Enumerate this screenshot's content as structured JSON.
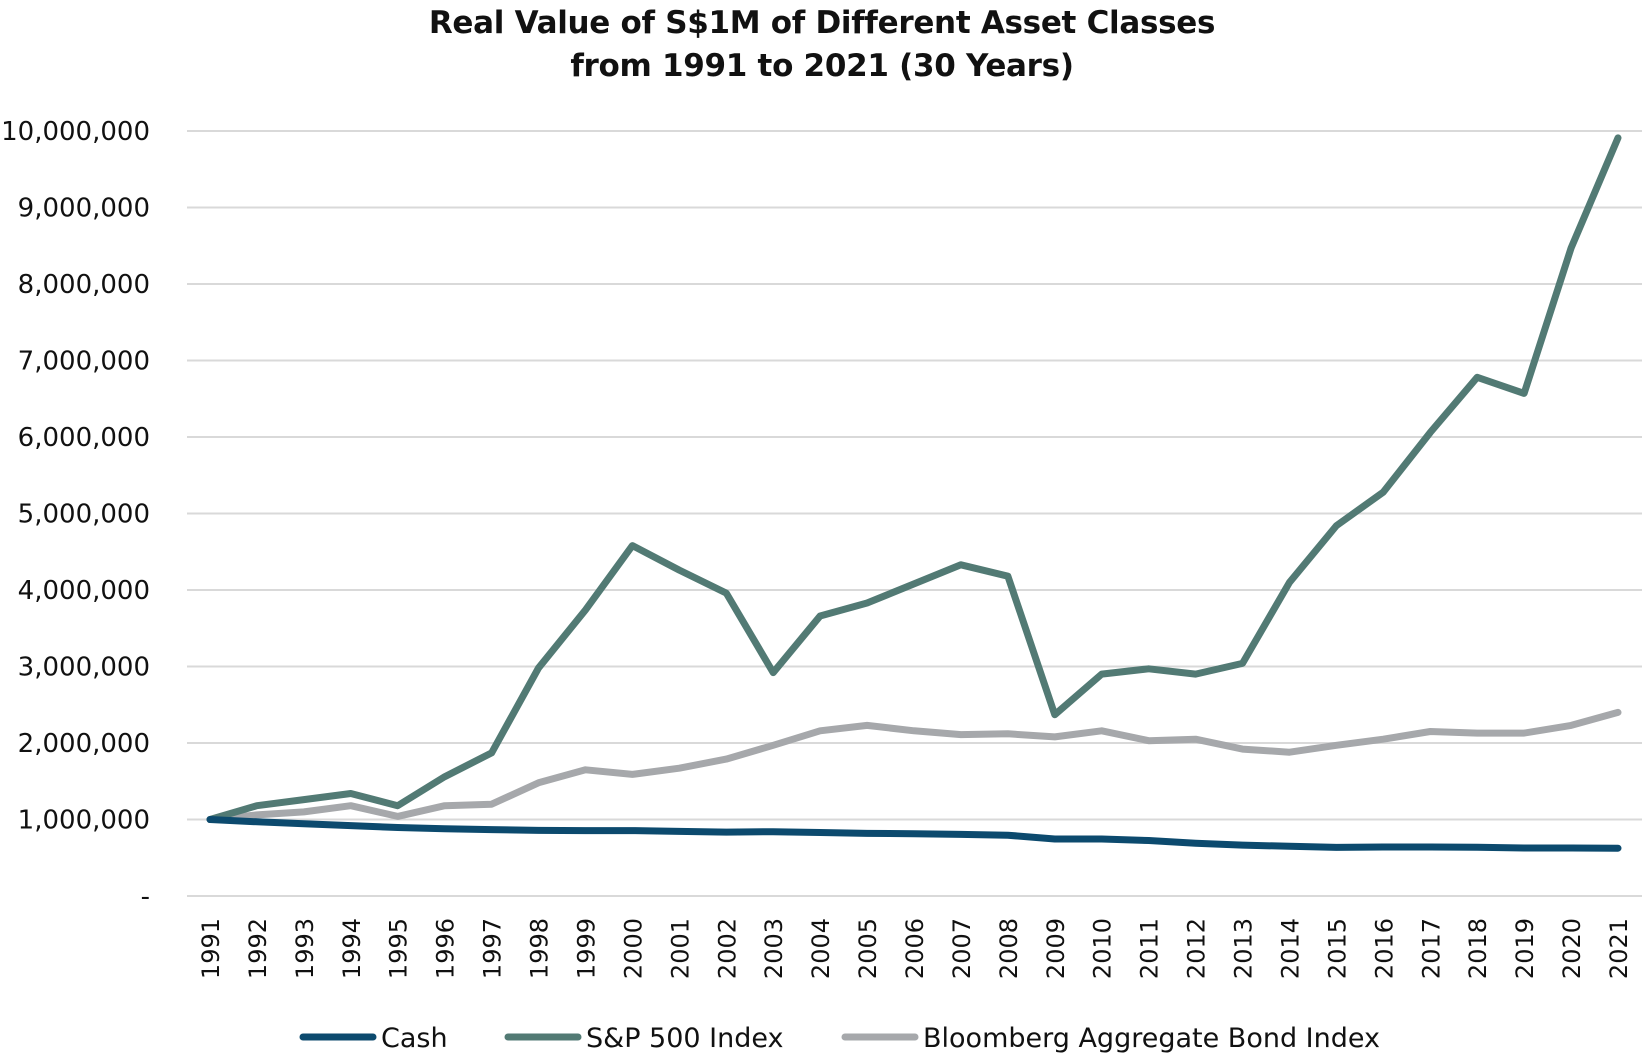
{
  "chart_data": {
    "type": "line",
    "title_line1": "Real Value of S$1M of Different Asset Classes",
    "title_line2": "from 1991 to 2021 (30 Years)",
    "xlabel": "",
    "ylabel": "",
    "ylim": [
      0,
      10000000
    ],
    "yticks": [
      {
        "value": 0,
        "label": "-"
      },
      {
        "value": 1000000,
        "label": "1,000,000"
      },
      {
        "value": 2000000,
        "label": "2,000,000"
      },
      {
        "value": 3000000,
        "label": "3,000,000"
      },
      {
        "value": 4000000,
        "label": "4,000,000"
      },
      {
        "value": 5000000,
        "label": "5,000,000"
      },
      {
        "value": 6000000,
        "label": "6,000,000"
      },
      {
        "value": 7000000,
        "label": "7,000,000"
      },
      {
        "value": 8000000,
        "label": "8,000,000"
      },
      {
        "value": 9000000,
        "label": "9,000,000"
      },
      {
        "value": 10000000,
        "label": "10,000,000"
      }
    ],
    "grid": true,
    "legend_position": "bottom",
    "categories": [
      "1991",
      "1992",
      "1993",
      "1994",
      "1995",
      "1996",
      "1997",
      "1998",
      "1999",
      "2000",
      "2001",
      "2002",
      "2003",
      "2004",
      "2005",
      "2006",
      "2007",
      "2008",
      "2009",
      "2010",
      "2011",
      "2012",
      "2013",
      "2014",
      "2015",
      "2016",
      "2017",
      "2018",
      "2019",
      "2020",
      "2021"
    ],
    "series": [
      {
        "name": "Cash",
        "color": "#0c4a6e",
        "values": [
          1000000,
          970000,
          945000,
          920000,
          895000,
          880000,
          868000,
          858000,
          855000,
          855000,
          845000,
          835000,
          840000,
          830000,
          818000,
          815000,
          805000,
          795000,
          745000,
          745000,
          725000,
          690000,
          665000,
          650000,
          635000,
          640000,
          640000,
          638000,
          628000,
          628000,
          625000
        ]
      },
      {
        "name": "S&P 500 Index",
        "color": "#527a74",
        "values": [
          1000000,
          1180000,
          1260000,
          1340000,
          1180000,
          1560000,
          1870000,
          2980000,
          3740000,
          4580000,
          4260000,
          3960000,
          2920000,
          3660000,
          3830000,
          4080000,
          4330000,
          4180000,
          2370000,
          2900000,
          2970000,
          2900000,
          3040000,
          4100000,
          4840000,
          5280000,
          6060000,
          6780000,
          6570000,
          8470000,
          9910000
        ]
      },
      {
        "name": "Bloomberg Aggregate Bond Index",
        "color": "#a6a8ab",
        "values": [
          1000000,
          1060000,
          1100000,
          1180000,
          1040000,
          1180000,
          1200000,
          1480000,
          1650000,
          1590000,
          1670000,
          1790000,
          1970000,
          2160000,
          2230000,
          2160000,
          2110000,
          2120000,
          2080000,
          2160000,
          2030000,
          2050000,
          1920000,
          1880000,
          1970000,
          2050000,
          2150000,
          2130000,
          2130000,
          2230000,
          2400000
        ]
      }
    ]
  }
}
